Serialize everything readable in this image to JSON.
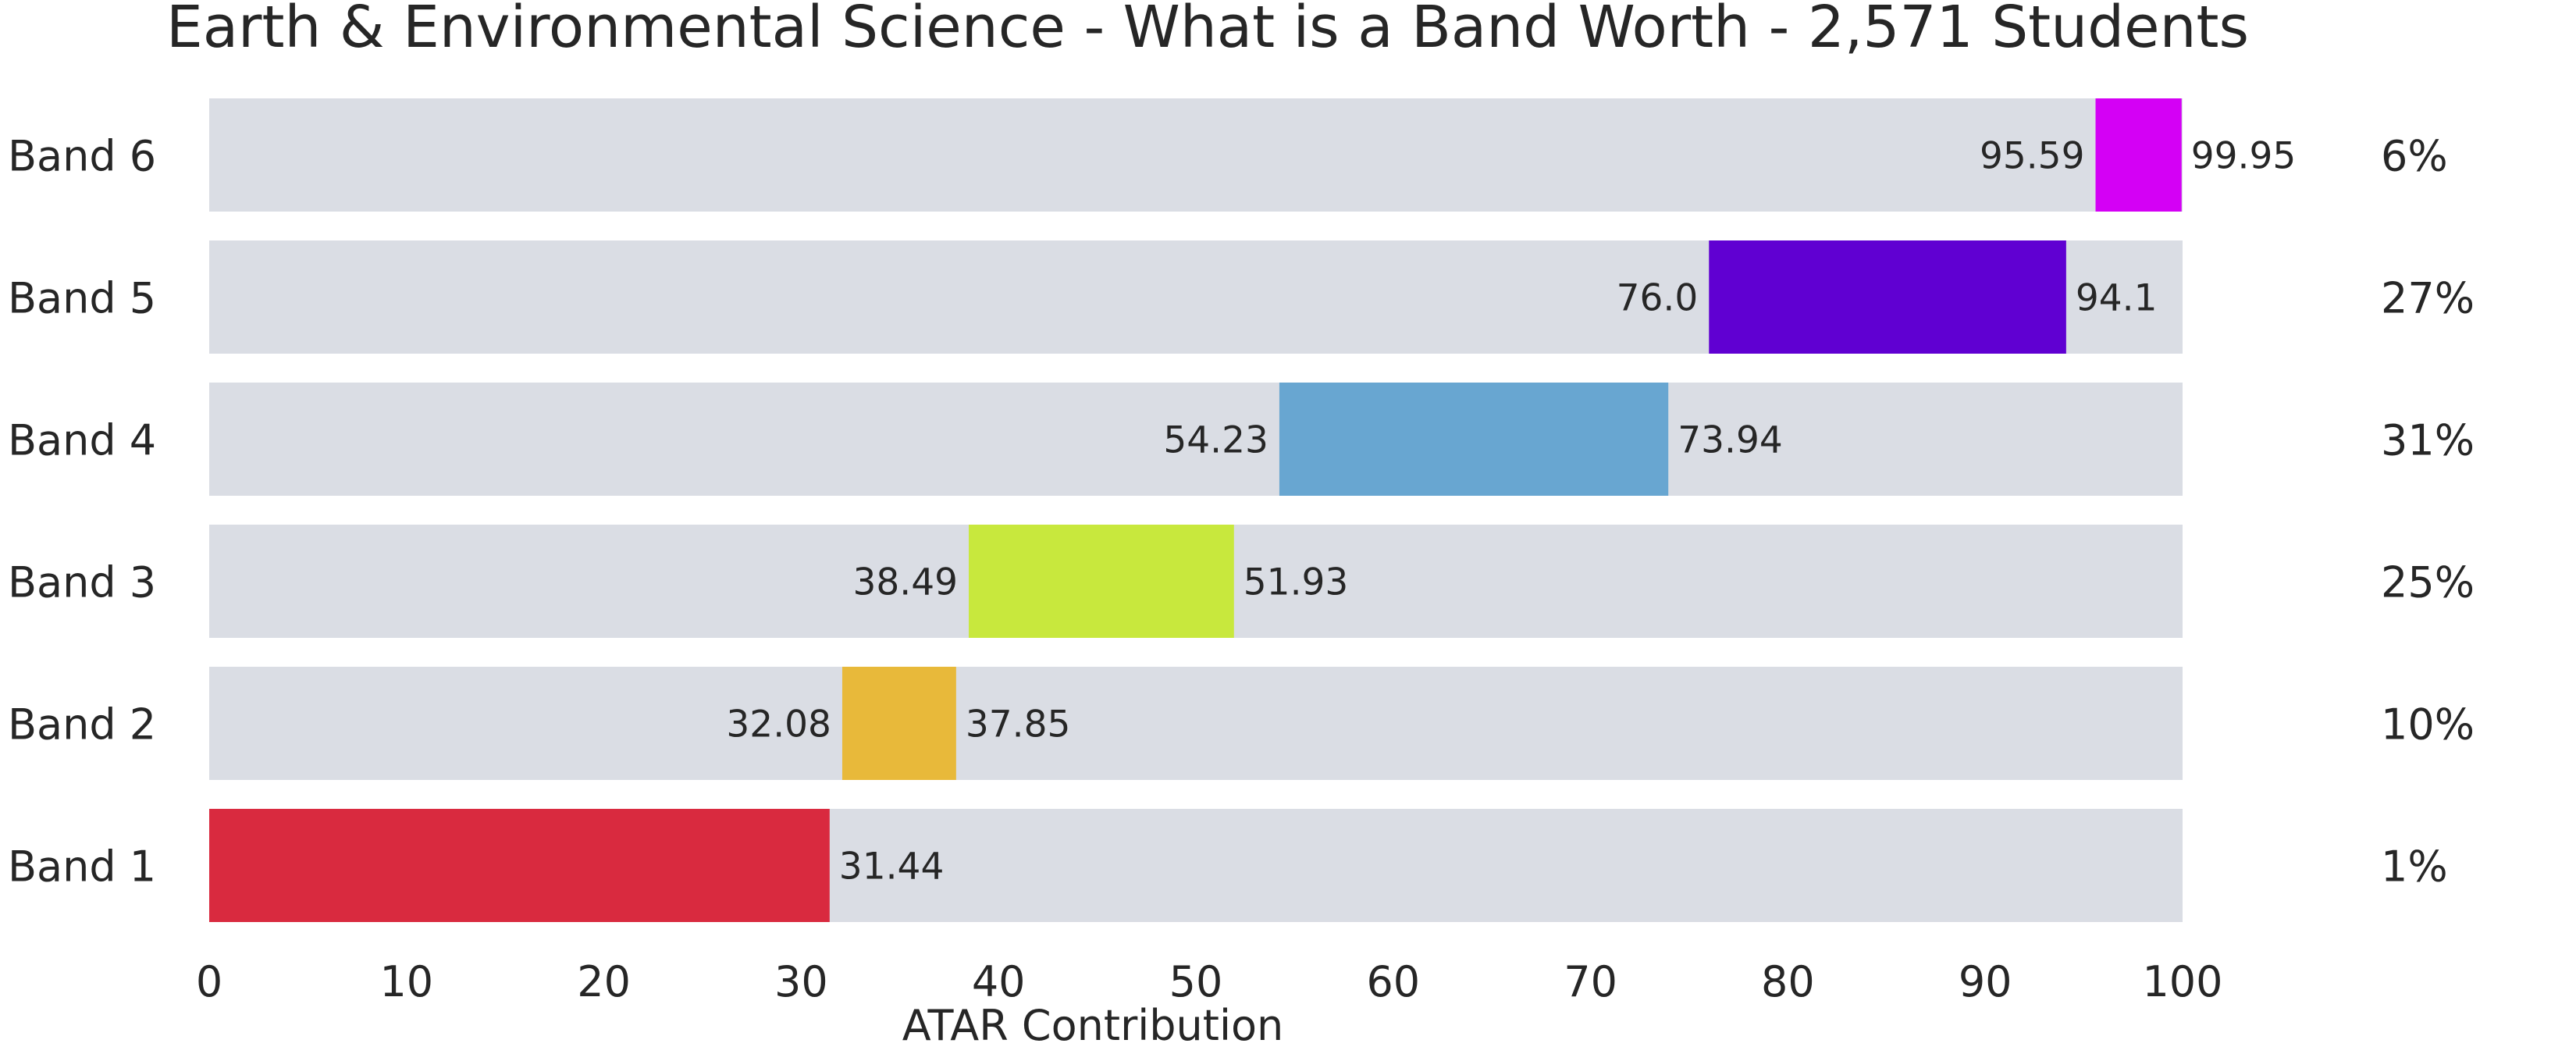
{
  "chart_data": {
    "type": "bar",
    "subtype": "floating-range-horizontal",
    "title": "Earth & Environmental Science - What is a Band Worth - 2,571 Students",
    "xlabel": "ATAR Contribution",
    "ylabel": "",
    "xlim": [
      0,
      100
    ],
    "x_ticks": [
      "0",
      "10",
      "20",
      "30",
      "40",
      "50",
      "60",
      "70",
      "80",
      "90",
      "100"
    ],
    "grid": false,
    "legend": "none",
    "background_bar_color": "#dadde4",
    "categories": [
      "Band 6",
      "Band 5",
      "Band 4",
      "Band 3",
      "Band 2",
      "Band 1"
    ],
    "series": [
      {
        "category": "Band 6",
        "start": 95.59,
        "end": 99.95,
        "start_label": "95.59",
        "end_label": "99.95",
        "percent": "6%",
        "color": "#d400f5"
      },
      {
        "category": "Band 5",
        "start": 76.0,
        "end": 94.1,
        "start_label": "76.0",
        "end_label": "94.1",
        "percent": "27%",
        "color": "#6000d2"
      },
      {
        "category": "Band 4",
        "start": 54.23,
        "end": 73.94,
        "start_label": "54.23",
        "end_label": "73.94",
        "percent": "31%",
        "color": "#68a6d1"
      },
      {
        "category": "Band 3",
        "start": 38.49,
        "end": 51.93,
        "start_label": "38.49",
        "end_label": "51.93",
        "percent": "25%",
        "color": "#c8e83d"
      },
      {
        "category": "Band 2",
        "start": 32.08,
        "end": 37.85,
        "start_label": "32.08",
        "end_label": "37.85",
        "percent": "10%",
        "color": "#e8b93a"
      },
      {
        "category": "Band 1",
        "start": 0,
        "end": 31.44,
        "start_label": "",
        "end_label": "31.44",
        "percent": "1%",
        "color": "#d92a3f"
      }
    ]
  }
}
